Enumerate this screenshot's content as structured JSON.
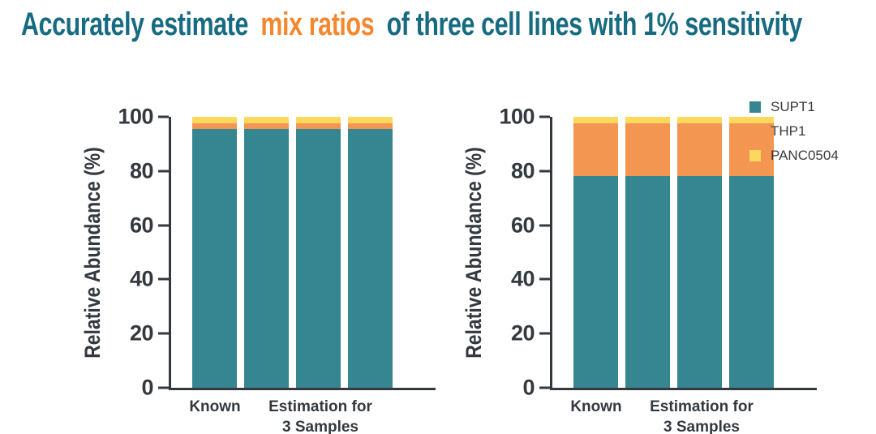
{
  "title": {
    "part1": "Accurately estimate",
    "accent": "mix ratios",
    "part2": "of three cell lines with 1% sensitivity",
    "color": "#166B80",
    "accent_color": "#F5872E"
  },
  "colors": {
    "supt1_teal": "#368692",
    "thp1_orange": "#F39652",
    "panc0504_yellow": "#FCD85C",
    "axis_ink": "#34393F",
    "legend_text": "#3B3B3B",
    "background": "#FFFFFF"
  },
  "legend": {
    "position": "right-of-second-chart",
    "items": [
      {
        "label": "SUPT1",
        "color": "#368692"
      },
      {
        "label": "THP1",
        "color": "#F39652"
      },
      {
        "label": "PANC0504",
        "color": "#FCD85C"
      }
    ]
  },
  "chart_data": [
    {
      "type": "bar",
      "stacked": true,
      "title": "",
      "ylabel": "Relative Abundance (%)",
      "xlabel": "",
      "ylim": [
        0,
        100
      ],
      "yticks": [
        0,
        20,
        40,
        60,
        80,
        100
      ],
      "grid": false,
      "legend": false,
      "categories": [
        "Known",
        "Estimation Sample 1",
        "Estimation Sample 2",
        "Estimation Sample 3"
      ],
      "xlabels": {
        "known": "Known",
        "est_line1": "Estimation for",
        "est_line2": "3 Samples"
      },
      "series": [
        {
          "name": "SUPT1",
          "color": "#368692",
          "values": [
            95.5,
            95.5,
            95.5,
            95.5
          ]
        },
        {
          "name": "THP1",
          "color": "#F39652",
          "values": [
            2,
            2,
            2,
            2
          ]
        },
        {
          "name": "PANC0504",
          "color": "#FCD85C",
          "values": [
            2.5,
            2.5,
            2.5,
            2.5
          ]
        }
      ]
    },
    {
      "type": "bar",
      "stacked": true,
      "title": "",
      "ylabel": "Relative Abundance (%)",
      "xlabel": "",
      "ylim": [
        0,
        100
      ],
      "yticks": [
        0,
        20,
        40,
        60,
        80,
        100
      ],
      "grid": false,
      "legend": true,
      "categories": [
        "Known",
        "Estimation Sample 1",
        "Estimation Sample 2",
        "Estimation Sample 3"
      ],
      "xlabels": {
        "known": "Known",
        "est_line1": "Estimation for",
        "est_line2": "3 Samples"
      },
      "series": [
        {
          "name": "SUPT1",
          "color": "#368692",
          "values": [
            78,
            78,
            78,
            78
          ]
        },
        {
          "name": "THP1",
          "color": "#F39652",
          "values": [
            19.5,
            19.5,
            19.5,
            19.5
          ]
        },
        {
          "name": "PANC0504",
          "color": "#FCD85C",
          "values": [
            2.5,
            2.5,
            2.5,
            2.5
          ]
        }
      ]
    }
  ]
}
